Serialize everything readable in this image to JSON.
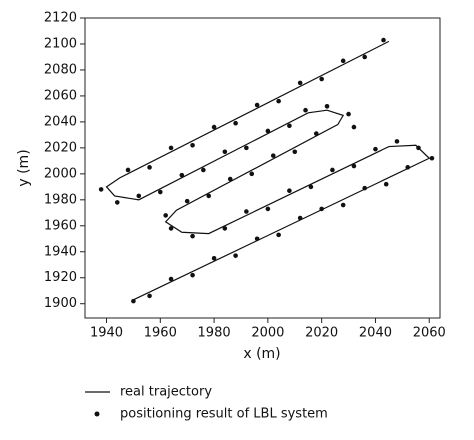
{
  "chart_data": {
    "type": "line",
    "xlabel": "x (m)",
    "ylabel": "y (m)",
    "xlim": [
      1932,
      2064
    ],
    "xticks": [
      1940,
      1960,
      1980,
      2000,
      2020,
      2040,
      2060
    ],
    "ylim": [
      1889,
      2120
    ],
    "yticks": [
      1900,
      1920,
      1940,
      1960,
      1980,
      2000,
      2020,
      2040,
      2060,
      2080,
      2100,
      2120
    ],
    "legend": "below",
    "series": [
      {
        "name": "real trajectory",
        "type": "line",
        "color": "#111111",
        "x": [
          2045,
          1945,
          1940,
          1943,
          1952,
          2015,
          2022,
          2028,
          2026,
          1966,
          1962,
          1968,
          1978,
          2045,
          2055,
          2060,
          1950
        ],
        "values": [
          2102,
          1997,
          1990,
          1983,
          1980,
          2047,
          2049,
          2045,
          2038,
          1972,
          1963,
          1955,
          1954,
          2021,
          2022,
          2012,
          1903
        ]
      },
      {
        "name": "positioning result of LBL system",
        "type": "scatter",
        "color": "#111111",
        "x": [
          2043,
          2036,
          2028,
          2020,
          2012,
          2004,
          1996,
          1988,
          1980,
          1972,
          1964,
          1956,
          1948,
          1938,
          1944,
          1952,
          1960,
          1968,
          1976,
          1984,
          1992,
          2000,
          2008,
          2014,
          2022,
          2030,
          2032,
          2018,
          2010,
          2002,
          1994,
          1986,
          1978,
          1970,
          1962,
          1964,
          1972,
          1984,
          1992,
          2000,
          2008,
          2016,
          2024,
          2032,
          2040,
          2048,
          2056,
          2061,
          2052,
          2044,
          2036,
          2028,
          2020,
          2012,
          2004,
          1996,
          1988,
          1980,
          1972,
          1964,
          1956,
          1950
        ],
        "values": [
          2103,
          2090,
          2087,
          2073,
          2070,
          2056,
          2053,
          2039,
          2036,
          2022,
          2020,
          2005,
          2003,
          1988,
          1978,
          1983,
          1986,
          1999,
          2003,
          2017,
          2020,
          2033,
          2037,
          2049,
          2052,
          2046,
          2036,
          2031,
          2017,
          2014,
          2000,
          1996,
          1983,
          1979,
          1968,
          1958,
          1952,
          1958,
          1971,
          1973,
          1987,
          1990,
          2003,
          2006,
          2019,
          2025,
          2020,
          2012,
          2005,
          1992,
          1989,
          1976,
          1973,
          1966,
          1953,
          1950,
          1937,
          1935,
          1922,
          1919,
          1906,
          1902
        ]
      }
    ]
  }
}
